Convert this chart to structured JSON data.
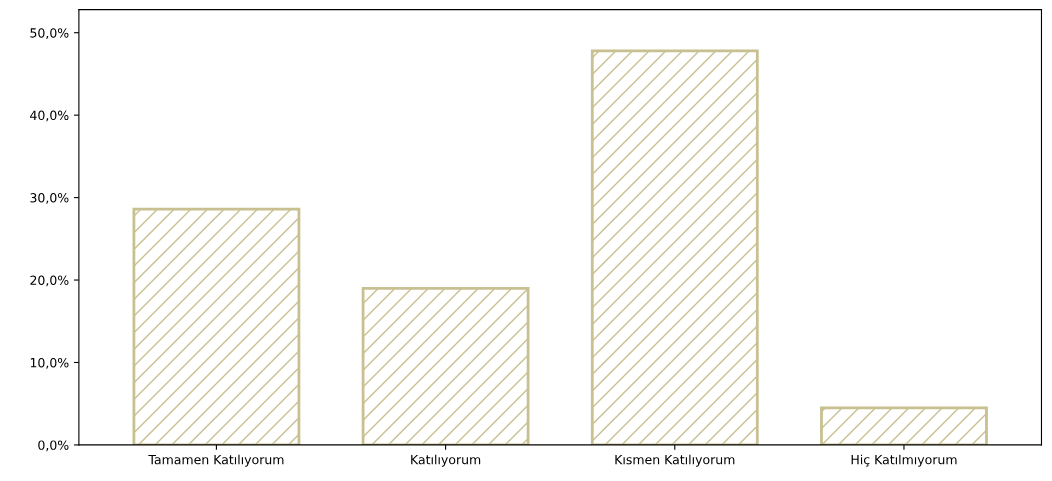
{
  "chart_data": {
    "type": "bar",
    "categories": [
      "Tamamen Katılıyorum",
      "Katılıyorum",
      "Kısmen Katılıyorum",
      "Hiç Katılmıyorum"
    ],
    "values": [
      28.6,
      19.0,
      47.8,
      4.5
    ],
    "color": "#c8c090",
    "ylim": [
      0,
      52.8
    ],
    "yticks": [
      {
        "value": 0,
        "label": "0,0%"
      },
      {
        "value": 10,
        "label": "10,0%"
      },
      {
        "value": 20,
        "label": "20,0%"
      },
      {
        "value": 30,
        "label": "30,0%"
      },
      {
        "value": 40,
        "label": "40,0%"
      },
      {
        "value": 50,
        "label": "50,0%"
      }
    ],
    "grid": false
  }
}
